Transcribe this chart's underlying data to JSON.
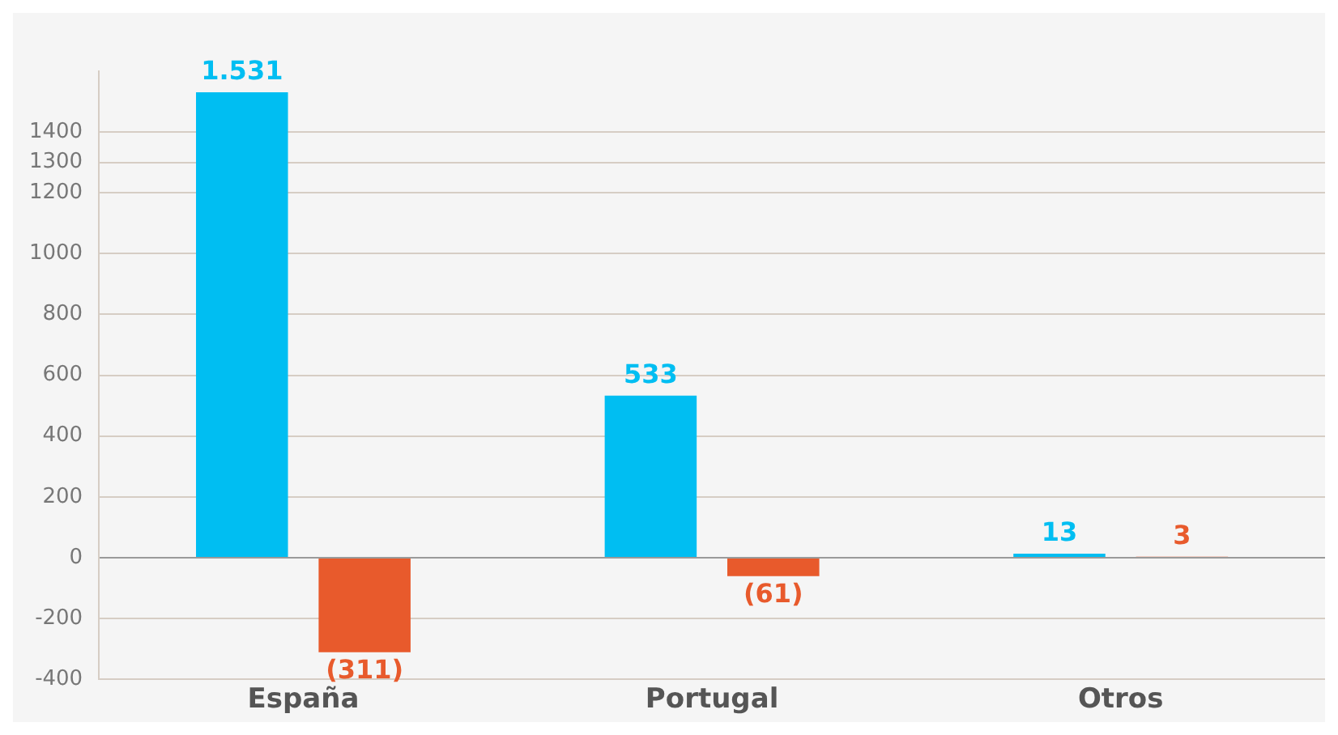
{
  "chart_data": {
    "type": "bar",
    "categories": [
      "España",
      "Portugal",
      "Otros"
    ],
    "series": [
      {
        "color": "#00bef2",
        "values": [
          1531,
          533,
          13
        ],
        "value_labels": [
          "1.531",
          "533",
          "13"
        ]
      },
      {
        "color": "#e85a2c",
        "values": [
          -311,
          -61,
          3
        ],
        "value_labels": [
          "(311)",
          "(61)",
          "3"
        ]
      }
    ],
    "ylim": [
      -400,
      1600
    ],
    "yticks": [
      -400,
      -200,
      0,
      200,
      400,
      600,
      800,
      1000,
      1200,
      1300,
      1400
    ],
    "grid": "y",
    "legend": false
  }
}
